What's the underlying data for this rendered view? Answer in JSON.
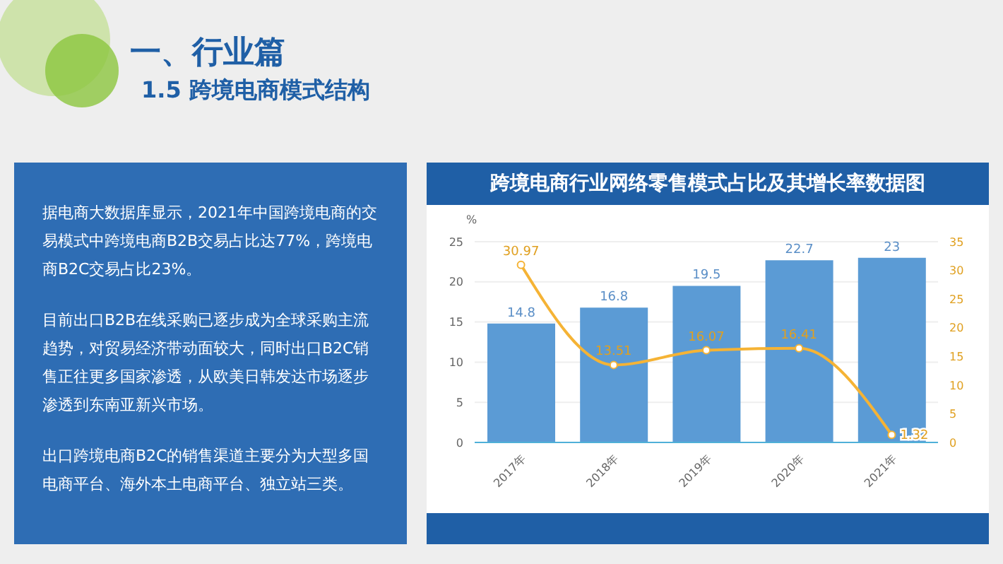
{
  "chart_data": {
    "type": "bar",
    "title": "跨境电商行业网络零售模式占比及其增长率数据图",
    "ylabel": "%",
    "annotations": [
      "一、行业篇",
      "1.5 跨境电商模式结构",
      "据电商大数据库显示，2021年中国跨境电商的交易模式中跨境电商B2B交易占比达77%，跨境电商B2C交易占比23%。",
      "目前出口B2B在线采购已逐步成为全球采购主流趋势，对贸易经济带动面较大，同时出口B2C销售正往更多国家渗透，从欧美日韩发达市场逐步渗透到东南亚新兴市场。",
      "出口跨境电商B2C的销售渠道主要分为大型多国电商平台、海外本土电商平台、独立站三类。"
    ],
    "categories": [
      "2017年",
      "2018年",
      "2019年",
      "2020年",
      "2021年"
    ],
    "series": [
      {
        "color": "#5b9bd5",
        "values": [
          14.8,
          16.8,
          19.5,
          22.7,
          23
        ]
      },
      {
        "type": "line",
        "axis": "y2",
        "color": "#f5b335",
        "values": [
          30.97,
          13.51,
          16.07,
          16.41,
          1.32
        ]
      }
    ],
    "ylim": [
      0,
      25
    ],
    "yticks": [
      0,
      5,
      10,
      15,
      20,
      25
    ],
    "y2lim": [
      0,
      35
    ],
    "y2ticks": [
      0,
      5,
      10,
      15,
      20,
      25,
      30,
      35
    ],
    "grid": "y",
    "data_labels": true,
    "marker": "circle",
    "legend": false
  }
}
